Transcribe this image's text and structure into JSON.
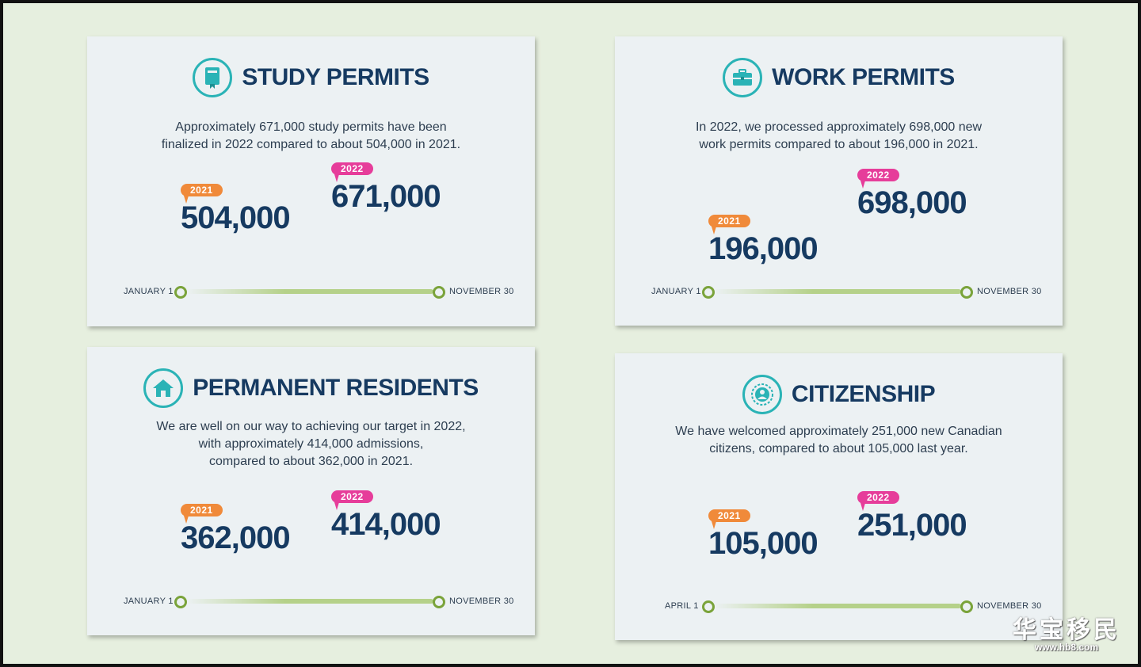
{
  "cards": {
    "study": {
      "title": "STUDY PERMITS",
      "icon": "book-icon",
      "desc_line1": "Approximately 671,000 study permits have been",
      "desc_line2": "finalized in 2022 compared to about 504,000 in 2021.",
      "tag_2021": "2021",
      "value_2021": "504,000",
      "tag_2022": "2022",
      "value_2022": "671,000",
      "start_label": "JANUARY 1",
      "end_label": "NOVEMBER 30"
    },
    "work": {
      "title": "WORK PERMITS",
      "icon": "briefcase-icon",
      "desc_line1": "In 2022, we processed approximately 698,000 new",
      "desc_line2": "work permits compared to about 196,000 in 2021.",
      "tag_2021": "2021",
      "value_2021": "196,000",
      "tag_2022": "2022",
      "value_2022": "698,000",
      "start_label": "JANUARY 1",
      "end_label": "NOVEMBER 30"
    },
    "pr": {
      "title": "PERMANENT RESIDENTS",
      "icon": "house-icon",
      "desc_line1": "We are well on our way to achieving our target in 2022,",
      "desc_line2": "with approximately 414,000 admissions,",
      "desc_line3": "compared to about 362,000 in 2021.",
      "tag_2021": "2021",
      "value_2021": "362,000",
      "tag_2022": "2022",
      "value_2022": "414,000",
      "start_label": "JANUARY 1",
      "end_label": "NOVEMBER 30"
    },
    "citizenship": {
      "title": "CITIZENSHIP",
      "icon": "citizen-seal-icon",
      "desc_line1": "We have welcomed approximately 251,000 new Canadian",
      "desc_line2": "citizens, compared to about 105,000 last year.",
      "tag_2021": "2021",
      "value_2021": "105,000",
      "tag_2022": "2022",
      "value_2022": "251,000",
      "start_label": "APRIL 1",
      "end_label": "NOVEMBER 30"
    }
  },
  "colors": {
    "title": "#163a61",
    "icon_teal": "#2ab3b6",
    "tag_2021": "#f08a3a",
    "tag_2022": "#e63d9a",
    "timeline_green": "#7aa33a"
  },
  "watermark": {
    "chinese": "华宝移民",
    "url": "www.hb8.com"
  }
}
